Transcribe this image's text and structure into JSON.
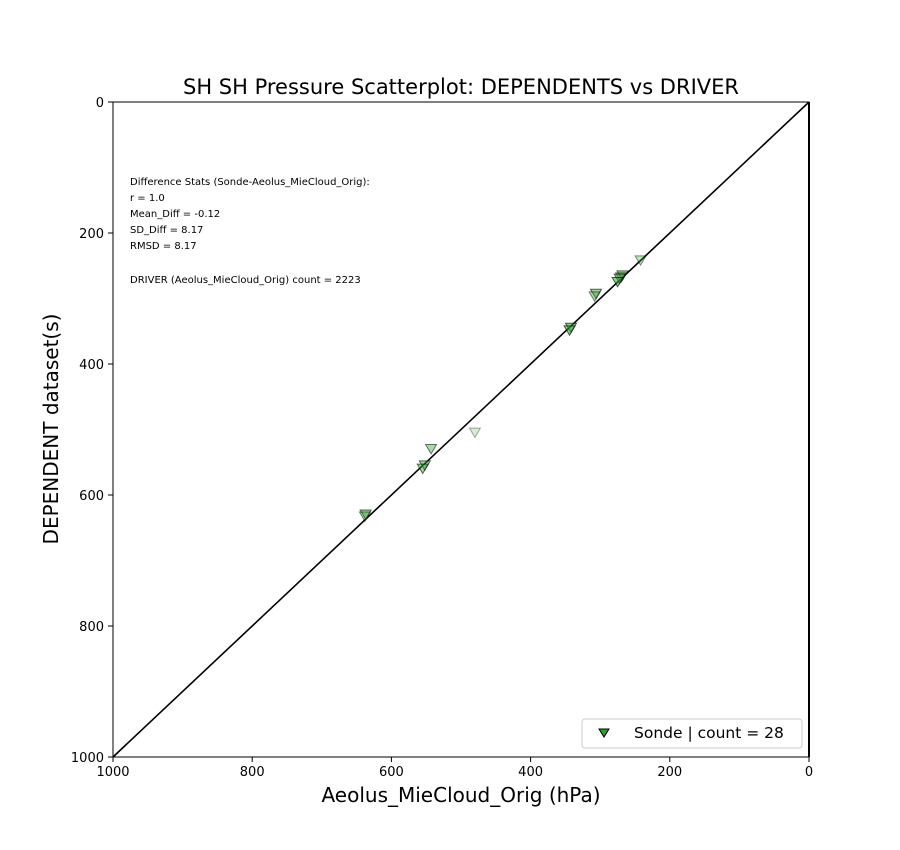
{
  "chart_data": {
    "type": "scatter",
    "title": "SH SH Pressure Scatterplot: DEPENDENTS vs DRIVER",
    "xlabel": "Aeolus_MieCloud_Orig (hPa)",
    "ylabel": "DEPENDENT dataset(s)",
    "xlim": [
      1000,
      0
    ],
    "ylim": [
      1000,
      0
    ],
    "x_reversed": true,
    "y_reversed": true,
    "xticks": [
      1000,
      800,
      600,
      400,
      200,
      0
    ],
    "yticks": [
      0,
      200,
      400,
      600,
      800,
      1000
    ],
    "xtick_labels": [
      "1000",
      "800",
      "600",
      "400",
      "200",
      "0"
    ],
    "ytick_labels": [
      "0",
      "200",
      "400",
      "600",
      "800",
      "1000"
    ],
    "grid": false,
    "reference_line": "1:1",
    "stats_lines": [
      "Difference Stats (Sonde-Aeolus_MieCloud_Orig):",
      "r = 1.0",
      "Mean_Diff = -0.12",
      "SD_Diff = 8.17",
      "RMSD = 8.17",
      "",
      "DRIVER (Aeolus_MieCloud_Orig) count = 2223"
    ],
    "legend": {
      "placement": "lower-right",
      "entries": [
        {
          "label": "Sonde | count = 28",
          "marker": "triangle-down",
          "color": "#2ca02c"
        }
      ]
    },
    "series": [
      {
        "name": "Sonde | count = 28",
        "marker": "triangle-down",
        "color": "#2ca02c",
        "points": [
          {
            "x": 242,
            "y": 242,
            "alpha": 0.3
          },
          {
            "x": 268,
            "y": 265,
            "alpha": 0.45
          },
          {
            "x": 270,
            "y": 268,
            "alpha": 0.4
          },
          {
            "x": 272,
            "y": 270,
            "alpha": 0.45
          },
          {
            "x": 275,
            "y": 275,
            "alpha": 0.5
          },
          {
            "x": 306,
            "y": 293,
            "alpha": 0.45
          },
          {
            "x": 308,
            "y": 297,
            "alpha": 0.35
          },
          {
            "x": 342,
            "y": 345,
            "alpha": 0.5
          },
          {
            "x": 344,
            "y": 349,
            "alpha": 0.5
          },
          {
            "x": 480,
            "y": 505,
            "alpha": 0.2
          },
          {
            "x": 543,
            "y": 530,
            "alpha": 0.4
          },
          {
            "x": 552,
            "y": 555,
            "alpha": 0.45
          },
          {
            "x": 555,
            "y": 560,
            "alpha": 0.45
          },
          {
            "x": 637,
            "y": 630,
            "alpha": 0.45
          },
          {
            "x": 638,
            "y": 633,
            "alpha": 0.35
          }
        ]
      }
    ]
  }
}
